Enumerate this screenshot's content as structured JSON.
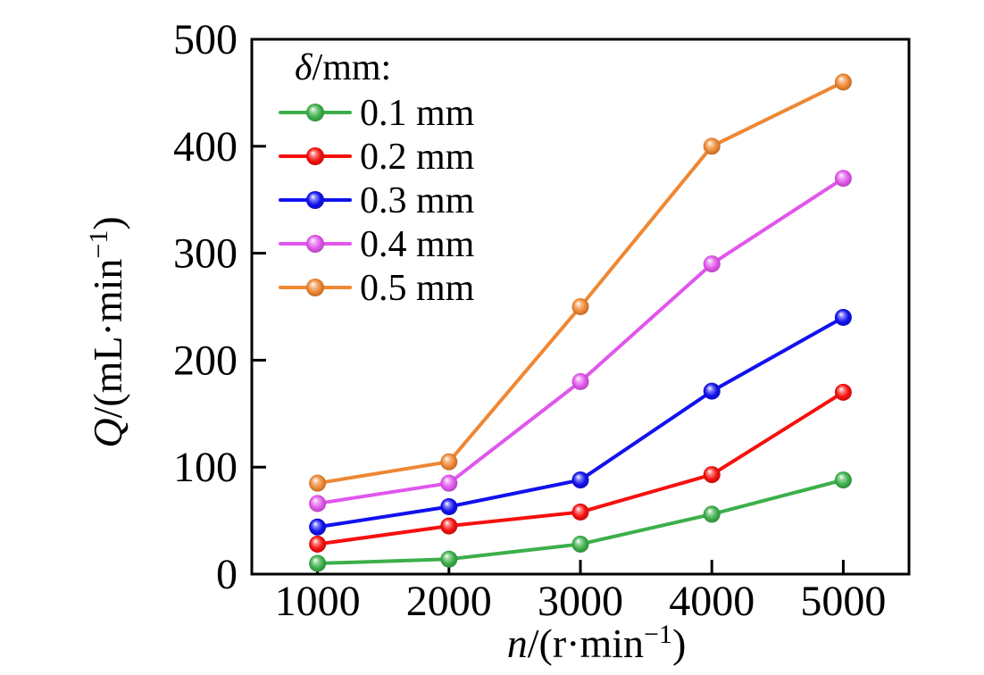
{
  "figure": {
    "background": "#FFFFFF",
    "axis_color": "#000000",
    "text_color": "#000000"
  },
  "chart_data": {
    "type": "line",
    "title": "",
    "xlabel": "n/(r·min⁻¹)",
    "ylabel": "Q/(mL·min⁻¹)",
    "xlabel_parts": {
      "var": "n",
      "mid": "/(r·min",
      "sup": "−1",
      "end": ")"
    },
    "ylabel_parts": {
      "var": "Q",
      "mid": "/(mL·min",
      "sup": "−1",
      "end": ")"
    },
    "legend": {
      "title_var": "δ",
      "title_rest": "/mm:",
      "position": "upper-left-inside"
    },
    "x": [
      1000,
      2000,
      3000,
      4000,
      5000
    ],
    "xticks": [
      "1000",
      "2000",
      "3000",
      "4000",
      "5000"
    ],
    "yticks": [
      "0",
      "100",
      "200",
      "300",
      "400",
      "500"
    ],
    "xlim": [
      500,
      5500
    ],
    "ylim": [
      0,
      500
    ],
    "grid": false,
    "marker_style": "glossy-sphere",
    "series": [
      {
        "name": "0.1 mm",
        "color": "#3CAF4A",
        "values": [
          10,
          14,
          28,
          56,
          88
        ]
      },
      {
        "name": "0.2 mm",
        "color": "#F6100E",
        "values": [
          28,
          45,
          58,
          93,
          170
        ]
      },
      {
        "name": "0.3 mm",
        "color": "#1111EF",
        "values": [
          44,
          63,
          88,
          171,
          240
        ]
      },
      {
        "name": "0.4 mm",
        "color": "#E156EC",
        "values": [
          66,
          85,
          180,
          290,
          370
        ]
      },
      {
        "name": "0.5 mm",
        "color": "#EF8733",
        "values": [
          85,
          105,
          250,
          400,
          460
        ]
      }
    ]
  }
}
